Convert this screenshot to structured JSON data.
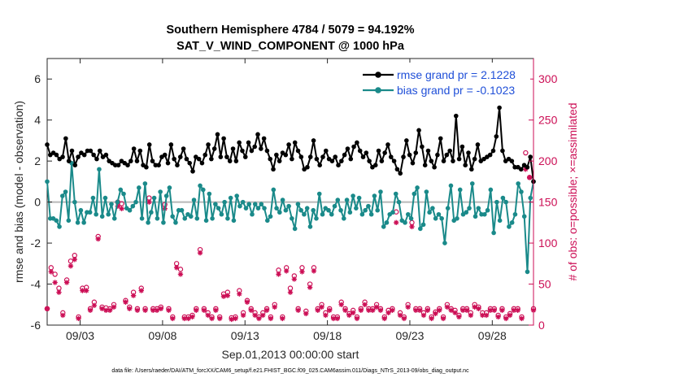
{
  "chart_data": {
    "type": "line",
    "title_line1": "Southern Hemisphere 4784 / 5079 = 94.192%",
    "title_line2": "SAT_V_WIND_COMPONENT @ 1000 hPa",
    "ylabel_left": "rmse and bias (model - observation)",
    "ylabel_right": "# of obs: o=possible; ×=assimilated",
    "xlabel": "Sep.01,2013 00:00:00 start",
    "footnote": "data file: /Users/raeder/DAI/ATM_forcXX/CAM6_setup/f.e21.FHIST_BGC.f09_025.CAM6assim.011/Diags_NTrS_2013-09/obs_diag_output.nc",
    "xlim": [
      1.0,
      30.5
    ],
    "ylim_left": [
      -6,
      7
    ],
    "ylim_right": [
      0,
      325
    ],
    "yticks_left": [
      -6,
      -4,
      -2,
      0,
      2,
      4,
      6
    ],
    "yticks_right": [
      0,
      50,
      100,
      150,
      200,
      250,
      300
    ],
    "xticks": [
      3,
      8,
      13,
      18,
      23,
      28
    ],
    "xtick_labels": [
      "09/03",
      "09/08",
      "09/13",
      "09/18",
      "09/23",
      "09/28"
    ],
    "grid": false,
    "legend_position": "top-right",
    "colors": {
      "rmse": "#000000",
      "bias": "#1a8a8a",
      "obs": "#cc0e55",
      "zero_line": "#b8b8b8"
    },
    "series": [
      {
        "name": "rmse grand pr = 2.1228",
        "axis": "left",
        "values": [
          2.8,
          2.3,
          2.4,
          2.3,
          2.1,
          2.2,
          3.1,
          2.0,
          2.5,
          1.8,
          2.2,
          2.4,
          2.3,
          2.5,
          2.5,
          2.3,
          2.1,
          2.5,
          2.2,
          2.3,
          2.0,
          1.9,
          1.8,
          1.8,
          2.0,
          1.9,
          1.8,
          2.0,
          2.6,
          2.0,
          2.5,
          1.8,
          1.7,
          2.8,
          2.0,
          1.8,
          1.8,
          2.2,
          2.3,
          1.9,
          2.8,
          2.1,
          1.8,
          2.2,
          2.6,
          2.1,
          1.9,
          1.5,
          2.2,
          2.1,
          1.9,
          2.3,
          2.8,
          2.1,
          2.6,
          3.3,
          2.2,
          3.1,
          2.2,
          2.0,
          2.6,
          2.0,
          2.9,
          2.5,
          2.2,
          2.9,
          2.5,
          2.7,
          3.3,
          2.6,
          3.1,
          2.5,
          2.1,
          1.6,
          2.3,
          2.0,
          2.4,
          2.3,
          2.8,
          2.1,
          2.9,
          2.5,
          2.2,
          1.6,
          1.7,
          2.2,
          3.0,
          2.1,
          1.8,
          2.2,
          2.5,
          2.1,
          2.0,
          2.2,
          1.8,
          2.0,
          2.3,
          2.6,
          2.1,
          2.7,
          2.9,
          2.5,
          2.2,
          2.4,
          2.0,
          1.7,
          1.8,
          2.5,
          2.0,
          2.4,
          2.8,
          2.2,
          2.0,
          1.6,
          1.4,
          2.2,
          3.0,
          2.3,
          1.9,
          2.4,
          3.5,
          2.7,
          1.8,
          2.5,
          2.0,
          1.7,
          2.3,
          3.1,
          2.0,
          2.3,
          2.5,
          2.0,
          4.2,
          2.1,
          2.7,
          1.8,
          2.4,
          1.6,
          2.1,
          2.8,
          2.0,
          2.1,
          2.2,
          2.3,
          2.5,
          3.2,
          4.6,
          2.5,
          2.0,
          2.1,
          2.0,
          1.7,
          1.7,
          1.6,
          1.8,
          1.7,
          2.2,
          1.0
        ]
      },
      {
        "name": "bias grand pr = -0.1023",
        "axis": "left",
        "values": [
          1.0,
          -0.8,
          -0.8,
          -0.9,
          -1.2,
          0.3,
          0.5,
          -0.9,
          1.9,
          0.0,
          -1.0,
          -0.4,
          -1.0,
          -0.5,
          -0.5,
          0.2,
          -0.6,
          1.6,
          -0.7,
          0.2,
          -0.6,
          -0.1,
          -0.8,
          0.0,
          0.6,
          0.4,
          -0.3,
          -0.4,
          -0.2,
          0.0,
          0.7,
          -0.8,
          0.9,
          -1.0,
          -0.5,
          0.2,
          -0.8,
          0.5,
          -1.0,
          0.3,
          0.7,
          -0.7,
          -1.0,
          -0.4,
          -0.4,
          -0.8,
          -0.6,
          -0.7,
          0.1,
          -0.8,
          0.8,
          0.6,
          -0.9,
          0.4,
          -0.8,
          -0.1,
          -0.3,
          -0.6,
          0.0,
          -0.8,
          0.2,
          -0.9,
          0.3,
          -0.2,
          0.0,
          -0.3,
          -0.1,
          -0.6,
          -0.1,
          -0.3,
          -0.1,
          -0.3,
          -0.9,
          -0.7,
          0.6,
          -0.3,
          -0.5,
          0.1,
          -0.4,
          -0.2,
          -0.8,
          -1.3,
          -0.1,
          -0.4,
          -0.6,
          -0.3,
          -1.2,
          -0.4,
          -0.8,
          0.4,
          -0.6,
          -0.3,
          -0.4,
          -0.6,
          -0.2,
          0.1,
          -0.4,
          -0.8,
          0.1,
          -0.5,
          0.3,
          -0.3,
          0.2,
          -0.6,
          -0.4,
          -0.2,
          -0.6,
          0.3,
          -0.4,
          0.5,
          -1.2,
          -1.0,
          -0.6,
          -0.5,
          0.4,
          0.0,
          -0.9,
          -1.0,
          -0.6,
          -0.8,
          0.4,
          0.7,
          -1.3,
          -1.1,
          0.5,
          -0.5,
          -0.3,
          -0.8,
          -0.6,
          -0.8,
          -2.0,
          -0.3,
          0.8,
          -0.9,
          -0.8,
          0.6,
          -0.6,
          -0.5,
          -0.3,
          0.9,
          -0.7,
          -0.3,
          -0.6,
          -0.6,
          -0.4,
          0.6,
          -1.5,
          0.0,
          -0.9,
          0.2,
          0.0,
          -1.2,
          -1.0,
          -0.6,
          0.9,
          0.5,
          -0.7,
          -3.4,
          0.2,
          1.0
        ]
      },
      {
        "name": "obs possible (o)",
        "axis": "right",
        "marker": "circle",
        "values": [
          20,
          70,
          62,
          45,
          15,
          55,
          78,
          85,
          10,
          45,
          46,
          20,
          28,
          108,
          22,
          21,
          20,
          25,
          150,
          148,
          30,
          22,
          40,
          20,
          45,
          20,
          155,
          20,
          20,
          22,
          147,
          20,
          10,
          75,
          68,
          10,
          10,
          12,
          20,
          92,
          20,
          15,
          10,
          20,
          10,
          38,
          40,
          9,
          10,
          42,
          15,
          30,
          20,
          15,
          10,
          15,
          20,
          10,
          25,
          67,
          10,
          70,
          45,
          60,
          20,
          70,
          17,
          50,
          70,
          20,
          25,
          15,
          20,
          10,
          10,
          28,
          20,
          14,
          18,
          10,
          20,
          28,
          20,
          20,
          25,
          20,
          10,
          18,
          20,
          138,
          15,
          10,
          25,
          125,
          20,
          20,
          15,
          20,
          10,
          16,
          20,
          10,
          25,
          20,
          18,
          12,
          20,
          20,
          15,
          25,
          22,
          15,
          15,
          20,
          20,
          12,
          20,
          10,
          14,
          20,
          20,
          10,
          210,
          180,
          20
        ]
      },
      {
        "name": "obs assimilated (×)",
        "axis": "right",
        "marker": "asterisk",
        "values": [
          20,
          65,
          52,
          40,
          12,
          52,
          72,
          80,
          8,
          42,
          42,
          18,
          24,
          105,
          20,
          18,
          18,
          22,
          145,
          142,
          28,
          20,
          36,
          18,
          42,
          18,
          150,
          18,
          18,
          20,
          142,
          18,
          8,
          70,
          62,
          8,
          8,
          10,
          18,
          88,
          18,
          12,
          8,
          18,
          8,
          35,
          36,
          7,
          8,
          38,
          12,
          28,
          18,
          12,
          8,
          12,
          18,
          8,
          22,
          62,
          8,
          66,
          40,
          56,
          18,
          65,
          14,
          46,
          66,
          18,
          22,
          12,
          18,
          8,
          8,
          25,
          18,
          12,
          15,
          8,
          18,
          25,
          18,
          18,
          22,
          18,
          8,
          15,
          18,
          125,
          12,
          8,
          22,
          120,
          18,
          18,
          12,
          18,
          8,
          14,
          18,
          8,
          22,
          18,
          15,
          10,
          18,
          18,
          12,
          22,
          20,
          12,
          12,
          18,
          18,
          10,
          18,
          8,
          12,
          18,
          18,
          8,
          190,
          180,
          18
        ]
      }
    ]
  }
}
